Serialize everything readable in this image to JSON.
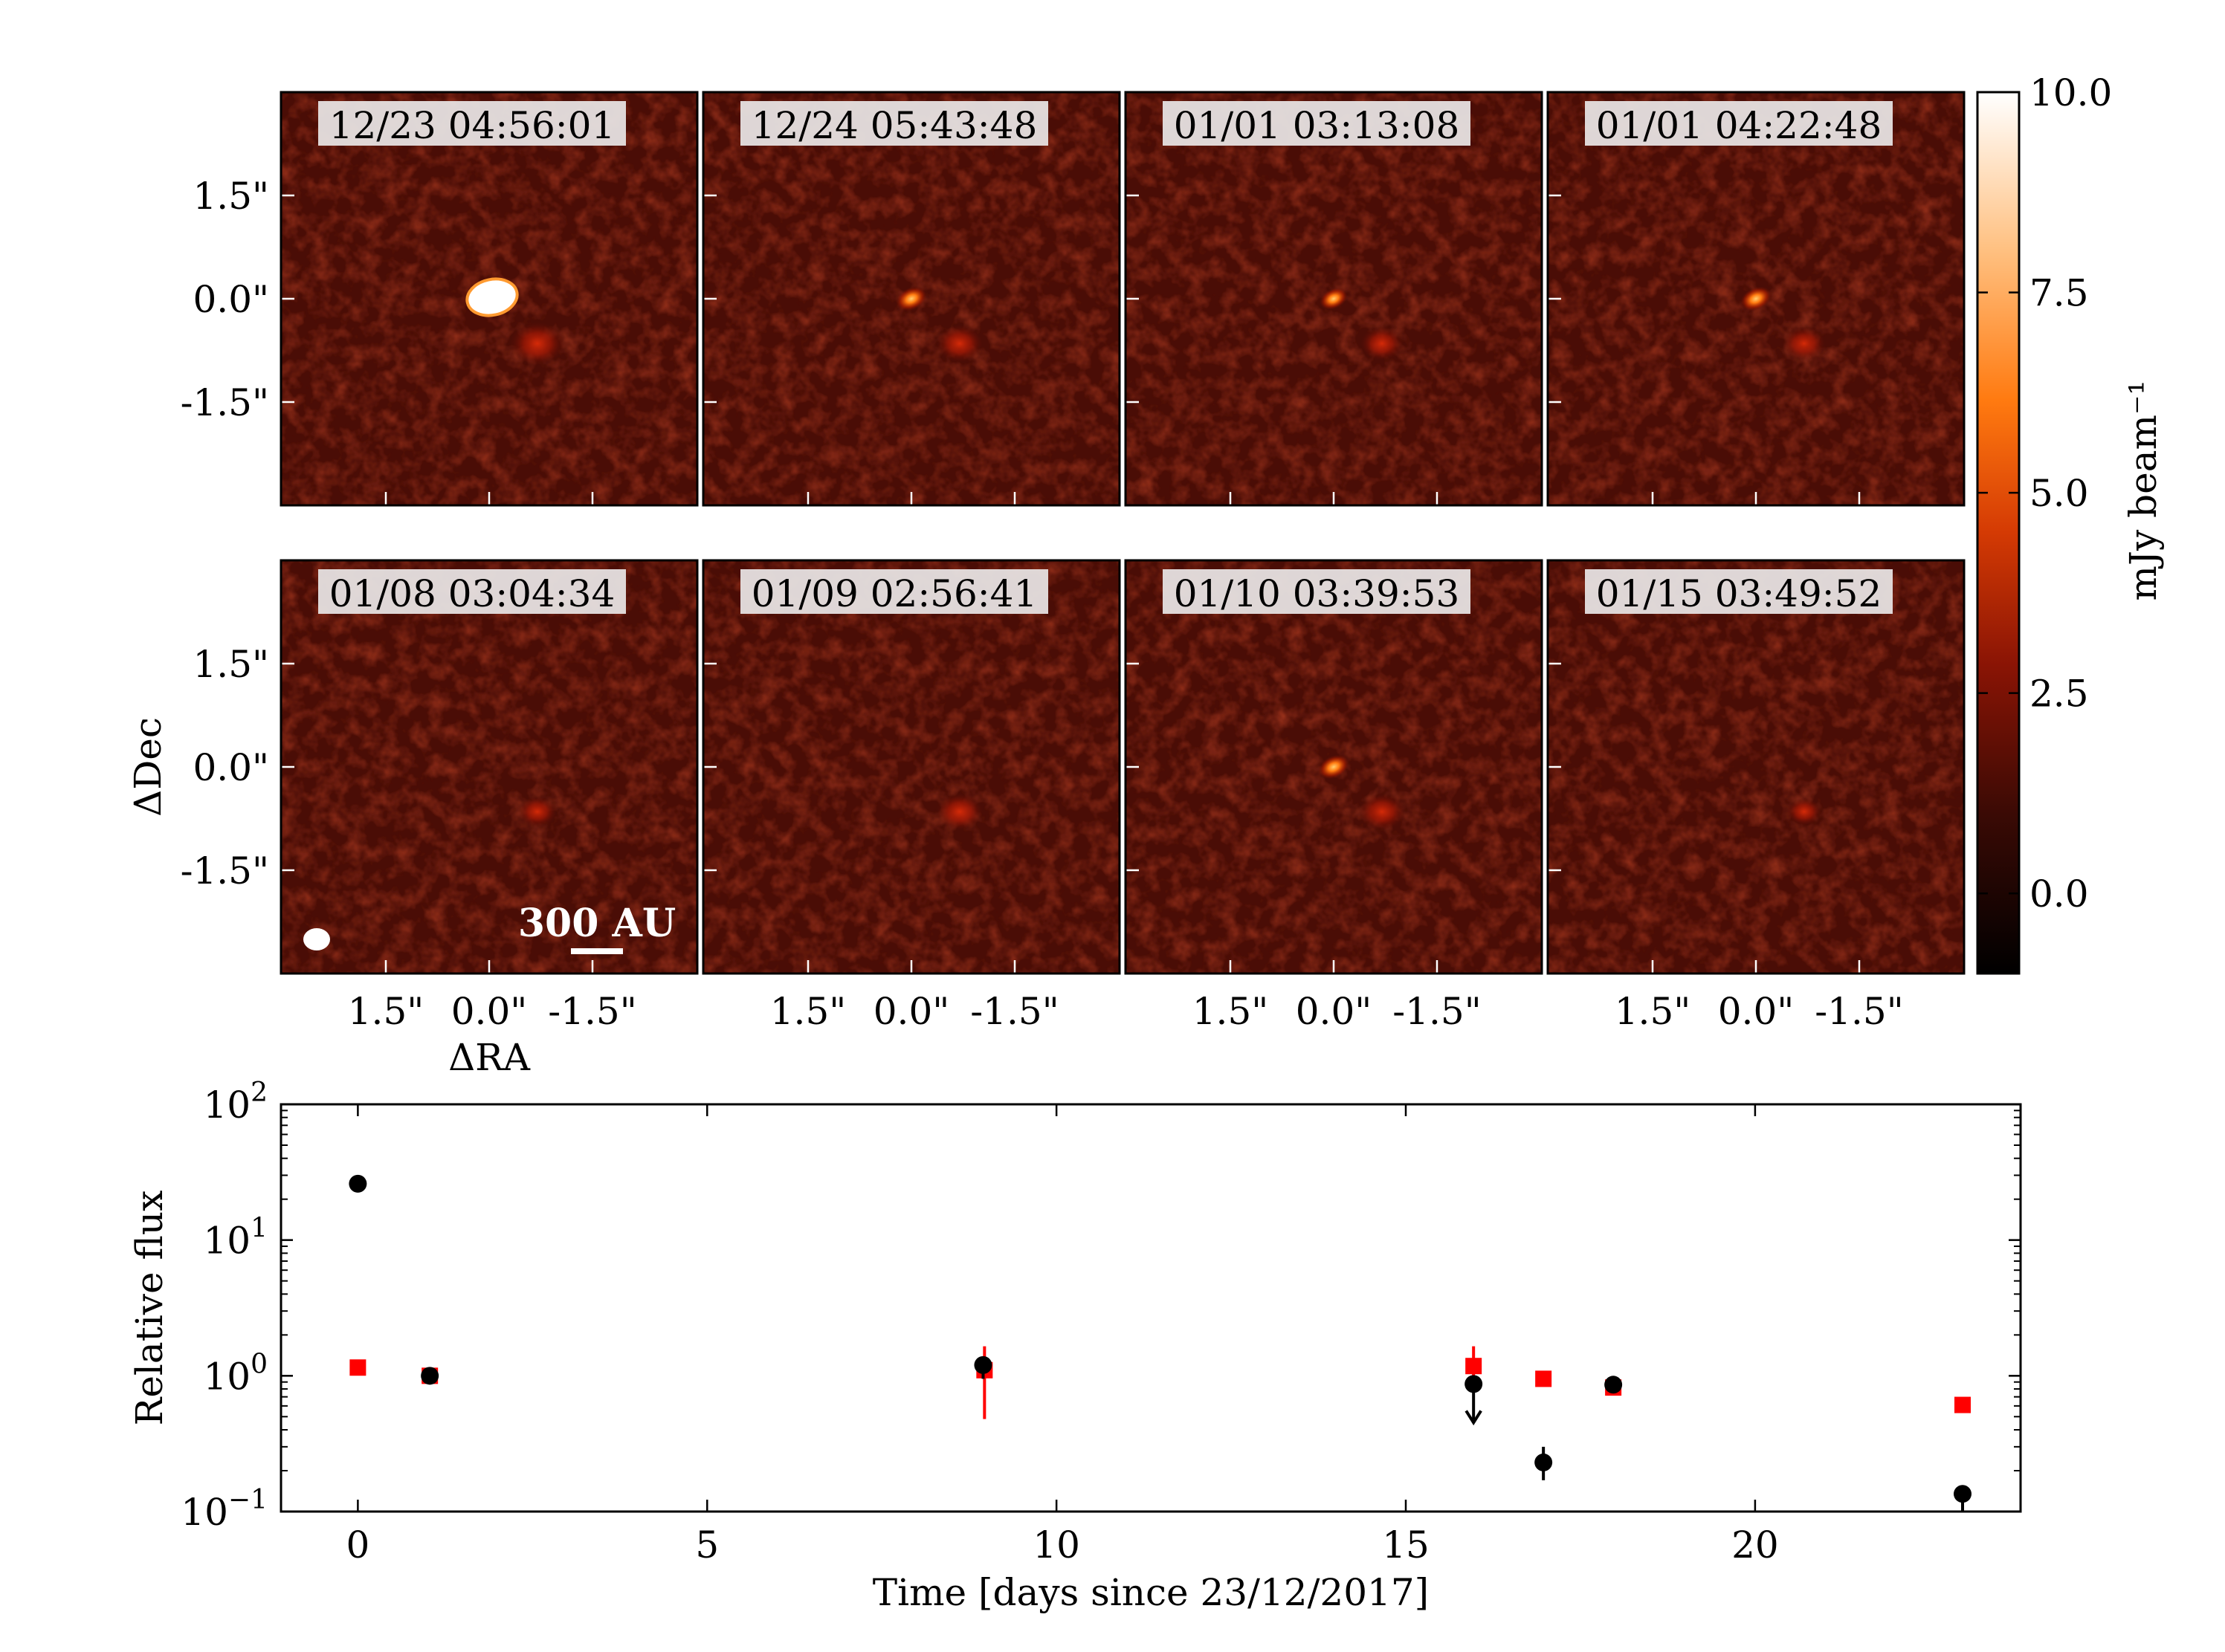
{
  "figure": {
    "panels": [
      {
        "label": "12/23 04:56:01",
        "bright": 12.0,
        "faint": 1.4,
        "bright_size": 1.6
      },
      {
        "label": "12/24 05:43:48",
        "bright": 4.2,
        "faint": 1.2,
        "bright_size": 1.0
      },
      {
        "label": "01/01 03:13:08",
        "bright": 3.6,
        "faint": 1.1,
        "bright_size": 0.9
      },
      {
        "label": "01/01 04:22:48",
        "bright": 4.0,
        "faint": 1.1,
        "bright_size": 1.0
      },
      {
        "label": "01/08 03:04:34",
        "bright": 0.0,
        "faint": 1.0,
        "bright_size": 0.0
      },
      {
        "label": "01/09 02:56:41",
        "bright": 0.0,
        "faint": 1.2,
        "bright_size": 0.0
      },
      {
        "label": "01/10 03:39:53",
        "bright": 2.6,
        "faint": 1.2,
        "bright_size": 1.0
      },
      {
        "label": "01/15 03:49:52",
        "bright": 0.0,
        "faint": 0.9,
        "bright_size": 0.0
      }
    ],
    "image_axes": {
      "ticks": [
        "1.5\"",
        "0.0\"",
        "-1.5\""
      ],
      "xlabel": "ΔRA",
      "ylabel": "ΔDec"
    },
    "scalebar_label": "300 AU",
    "colorbar": {
      "label": "mJy beam⁻¹",
      "ticks": [
        "10.0",
        "7.5",
        "5.0",
        "2.5",
        "0.0"
      ],
      "tick_values": [
        10.0,
        7.5,
        5.0,
        2.5,
        0.0
      ],
      "vmin": -1.0,
      "vmax": 10.0
    }
  },
  "chart_data": {
    "type": "scatter",
    "xlabel": "Time [days since 23/12/2017]",
    "ylabel": "Relative flux",
    "yscale": "log",
    "xlim": [
      -1.1,
      23.8
    ],
    "ylim": [
      0.1,
      100
    ],
    "x_ticks": [
      0,
      5,
      10,
      15,
      20
    ],
    "y_ticks": [
      {
        "value": 100,
        "base": "10",
        "exp": "2"
      },
      {
        "value": 10,
        "base": "10",
        "exp": "1"
      },
      {
        "value": 1,
        "base": "10",
        "exp": "0"
      },
      {
        "value": 0.1,
        "base": "10",
        "exp": "−1"
      }
    ],
    "series": [
      {
        "marker": "square",
        "color": "#ff0000",
        "points": [
          {
            "x": 0.0,
            "y": 1.15
          },
          {
            "x": 1.03,
            "y": 1.0
          },
          {
            "x": 8.97,
            "y": 1.1,
            "err": [
              0.48,
              1.65
            ]
          },
          {
            "x": 15.97,
            "y": 1.18,
            "err": [
              1.0,
              1.65
            ]
          },
          {
            "x": 16.97,
            "y": 0.95
          },
          {
            "x": 17.97,
            "y": 0.82
          },
          {
            "x": 22.97,
            "y": 0.61
          }
        ]
      },
      {
        "marker": "circle",
        "color": "#000000",
        "points": [
          {
            "x": 0.0,
            "y": 26.0
          },
          {
            "x": 1.03,
            "y": 1.0
          },
          {
            "x": 8.95,
            "y": 1.2,
            "err": [
              0.95,
              1.3
            ]
          },
          {
            "x": 15.97,
            "y": 0.87,
            "upper_limit": true
          },
          {
            "x": 16.97,
            "y": 0.23,
            "err": [
              0.17,
              0.3
            ]
          },
          {
            "x": 17.97,
            "y": 0.86
          },
          {
            "x": 22.97,
            "y": 0.135,
            "err": [
              0.1,
              0.14
            ]
          }
        ]
      }
    ]
  }
}
